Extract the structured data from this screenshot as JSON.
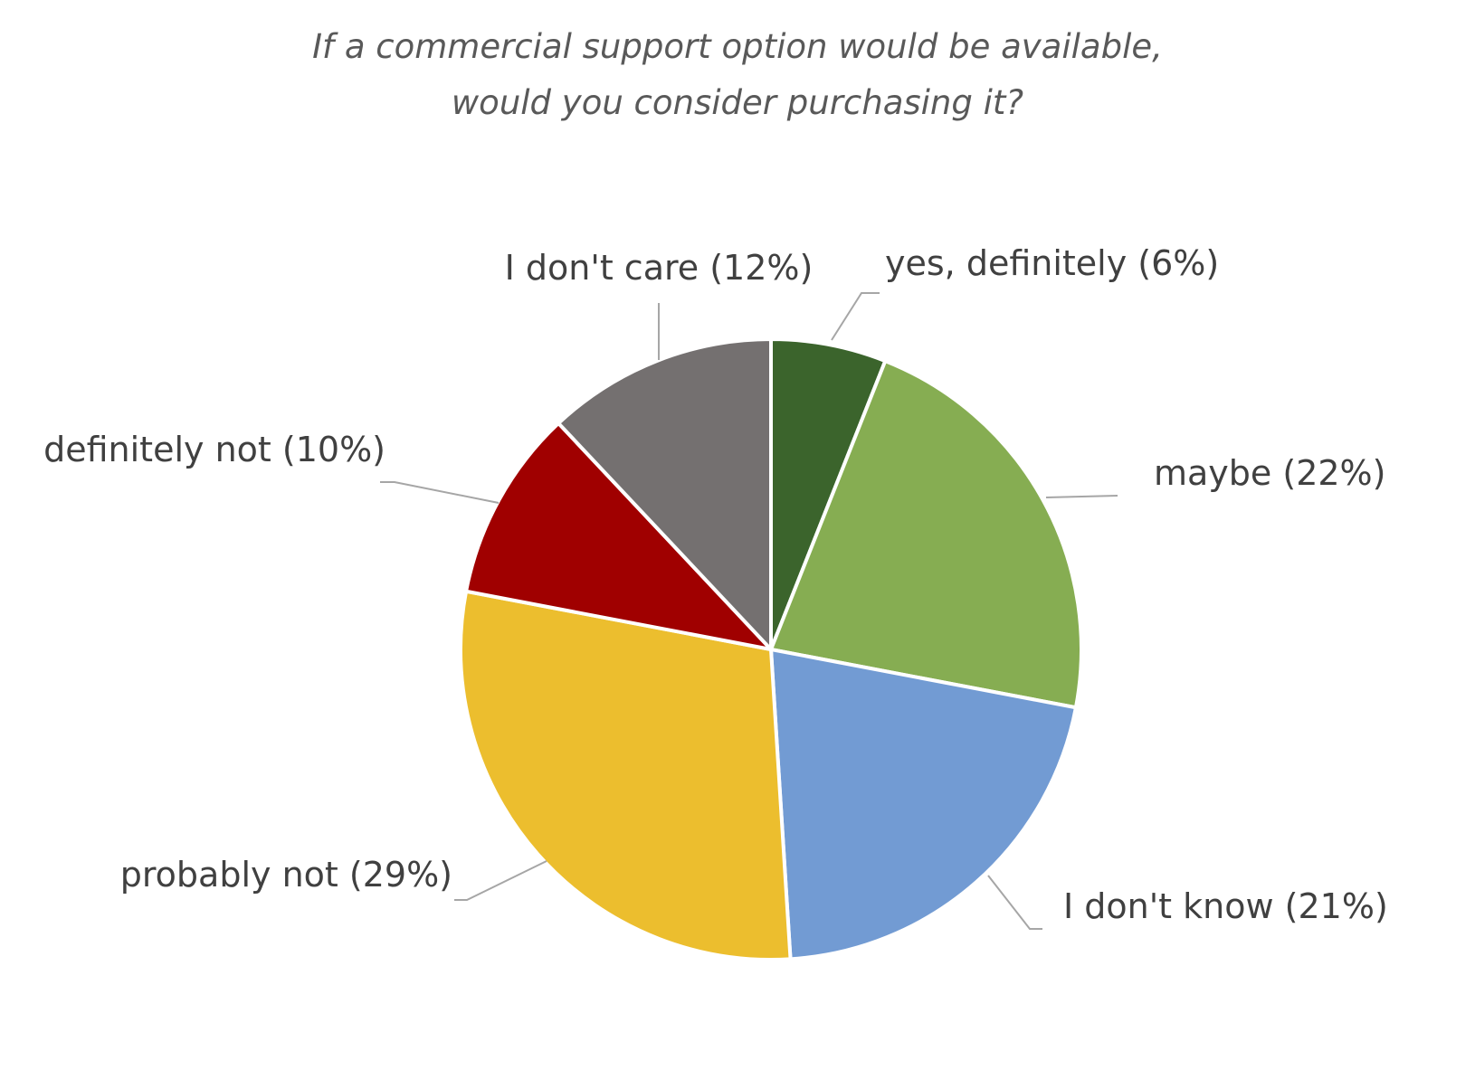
{
  "chart_data": {
    "type": "pie",
    "title_lines": [
      "If a commercial support option would be available,",
      "would you consider purchasing it?"
    ],
    "categories": [
      "yes, definitely",
      "maybe",
      "I don't know",
      "probably not",
      "definitely not",
      "I don't care"
    ],
    "values": [
      6,
      22,
      21,
      29,
      10,
      12
    ],
    "labels": [
      "yes, definitely (6%)",
      "maybe (22%)",
      "I don't know (21%)",
      "probably not (29%)",
      "definitely not (10%)",
      "I don't care (12%)"
    ],
    "colors": [
      "#3b642c",
      "#86ad52",
      "#729bd3",
      "#ecbe2e",
      "#a00000",
      "#747070"
    ],
    "start_angle": "12 o'clock",
    "direction": "clockwise",
    "legend": "none"
  }
}
